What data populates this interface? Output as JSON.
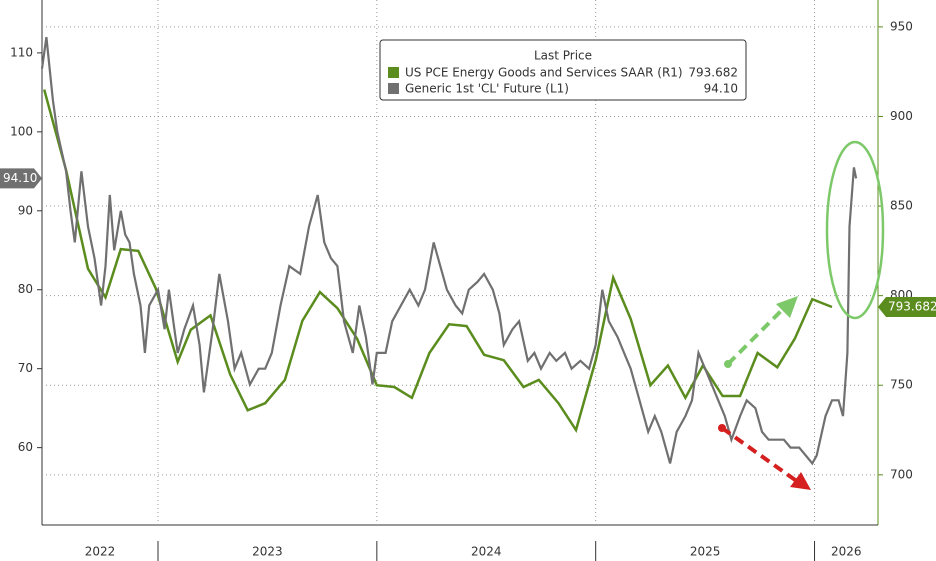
{
  "chart_data": {
    "type": "line",
    "legend_title": "Last Price",
    "xlim": [
      2022.47,
      2026.29
    ],
    "xticks": [
      {
        "value": 2022.735,
        "label": "2022"
      },
      {
        "value": 2023.5,
        "label": "2023"
      },
      {
        "value": 2024.5,
        "label": "2024"
      },
      {
        "value": 2025.5,
        "label": "2025"
      },
      {
        "value": 2026.145,
        "label": "2026"
      }
    ],
    "year_bounds": [
      2023,
      2024,
      2025,
      2026
    ],
    "ylim": [
      50.2,
      116.7
    ],
    "yticks": [
      60,
      70,
      80,
      90,
      100,
      110
    ],
    "y2lim": [
      672,
      965
    ],
    "y2ticks": [
      700,
      750,
      800,
      850,
      900,
      950
    ],
    "grid": true,
    "series": [
      {
        "name": "US PCE Energy Goods and Services SAAR (R1)",
        "last_label": "793.682",
        "color": "#5b8c1e",
        "axis": "y2",
        "x": [
          2022.48,
          2022.58,
          2022.68,
          2022.76,
          2022.83,
          2022.91,
          2022.99,
          2023.09,
          2023.15,
          2023.24,
          2023.33,
          2023.41,
          2023.49,
          2023.58,
          2023.66,
          2023.74,
          2023.82,
          2023.91,
          2024.0,
          2024.08,
          2024.16,
          2024.24,
          2024.33,
          2024.41,
          2024.49,
          2024.58,
          2024.67,
          2024.74,
          2024.83,
          2024.91,
          2025.0,
          2025.08,
          2025.16,
          2025.25,
          2025.33,
          2025.41,
          2025.49,
          2025.58,
          2025.66,
          2025.74,
          2025.83,
          2025.91,
          2025.99,
          2026.08
        ],
        "values": [
          915,
          870,
          815,
          799,
          826,
          825,
          804,
          763,
          781,
          789,
          756,
          736,
          740,
          753,
          786,
          802,
          793,
          776,
          750,
          749,
          743,
          768,
          784,
          783,
          767,
          764,
          749,
          753,
          740,
          725,
          764,
          810,
          787,
          750,
          761,
          743,
          761,
          744,
          744,
          768,
          760,
          776,
          798,
          793.682
        ]
      },
      {
        "name": "Generic 1st 'CL' Future (L1)",
        "last_label": "94.10",
        "color": "#707070",
        "x": [
          2022.47,
          2022.49,
          2022.52,
          2022.54,
          2022.58,
          2022.6,
          2022.62,
          2022.65,
          2022.68,
          2022.71,
          2022.74,
          2022.76,
          2022.78,
          2022.8,
          2022.83,
          2022.85,
          2022.87,
          2022.89,
          2022.92,
          2022.94,
          2022.96,
          2023.0,
          2023.03,
          2023.05,
          2023.09,
          2023.12,
          2023.16,
          2023.19,
          2023.21,
          2023.25,
          2023.28,
          2023.32,
          2023.35,
          2023.38,
          2023.42,
          2023.46,
          2023.49,
          2023.52,
          2023.56,
          2023.6,
          2023.65,
          2023.69,
          2023.73,
          2023.76,
          2023.79,
          2023.82,
          2023.85,
          2023.89,
          2023.92,
          2023.95,
          2023.98,
          2024.0,
          2024.04,
          2024.07,
          2024.11,
          2024.15,
          2024.19,
          2024.22,
          2024.26,
          2024.29,
          2024.32,
          2024.36,
          2024.39,
          2024.42,
          2024.46,
          2024.49,
          2024.53,
          2024.56,
          2024.58,
          2024.62,
          2024.65,
          2024.69,
          2024.72,
          2024.75,
          2024.79,
          2024.82,
          2024.86,
          2024.89,
          2024.93,
          2024.97,
          2025.0,
          2025.03,
          2025.06,
          2025.1,
          2025.13,
          2025.16,
          2025.2,
          2025.24,
          2025.27,
          2025.3,
          2025.34,
          2025.37,
          2025.41,
          2025.44,
          2025.47,
          2025.5,
          2025.53,
          2025.56,
          2025.59,
          2025.62,
          2025.66,
          2025.69,
          2025.73,
          2025.76,
          2025.79,
          2025.83,
          2025.86,
          2025.89,
          2025.93,
          2025.96,
          2025.99,
          2026.01,
          2026.05,
          2026.08,
          2026.11,
          2026.13,
          2026.15,
          2026.16,
          2026.18,
          2026.19
        ],
        "values": [
          108,
          112,
          104,
          100,
          95,
          90,
          86,
          95,
          88,
          84,
          78,
          83,
          92,
          85,
          90,
          87,
          86,
          82,
          78,
          72,
          78,
          80,
          75,
          80,
          72,
          75,
          78,
          73,
          67,
          75,
          82,
          76,
          70,
          72,
          68,
          70,
          70,
          72,
          78,
          83,
          82,
          88,
          92,
          86,
          84,
          83,
          76,
          72,
          78,
          74,
          68,
          72,
          72,
          76,
          78,
          80,
          78,
          80,
          86,
          83,
          80,
          78,
          77,
          80,
          81,
          82,
          80,
          77,
          73,
          75,
          76,
          71,
          72,
          70,
          72,
          71,
          72,
          70,
          71,
          70,
          73,
          80,
          76,
          74,
          72,
          70,
          66,
          62,
          64,
          62,
          58,
          62,
          64,
          66,
          72,
          70,
          68,
          66,
          64,
          61,
          64,
          66,
          65,
          62,
          61,
          61,
          61,
          60,
          60,
          59,
          58,
          59,
          64,
          66,
          66,
          64,
          72,
          88,
          95.5,
          94.1
        ]
      }
    ]
  }
}
